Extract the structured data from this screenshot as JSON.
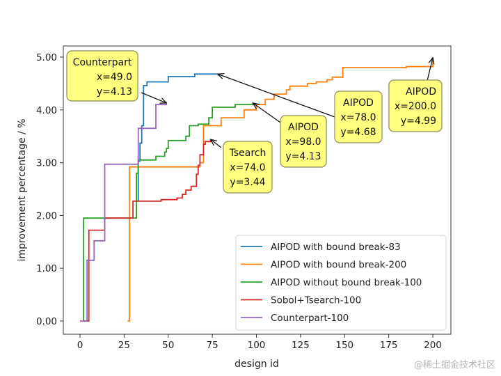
{
  "chart_data": {
    "type": "line",
    "step": true,
    "title": "",
    "xlabel": "design id",
    "ylabel": "improvement percentage / %",
    "xlim": [
      -8,
      210
    ],
    "ylim": [
      -0.25,
      5.2
    ],
    "xticks": [
      0,
      25,
      50,
      75,
      100,
      125,
      150,
      175,
      200
    ],
    "yticks": [
      0.0,
      1.0,
      2.0,
      3.0,
      4.0,
      5.0
    ],
    "ytick_labels": [
      "0.00",
      "1.00",
      "2.00",
      "3.00",
      "4.00",
      "5.00"
    ],
    "grid": false,
    "legend_position": "lower-right",
    "series": [
      {
        "name": "AIPOD with bound break-83",
        "color": "#1f77b4",
        "points": [
          [
            33,
            2.28
          ],
          [
            33,
            2.9
          ],
          [
            33,
            3.03
          ],
          [
            34,
            3.03
          ],
          [
            34,
            3.37
          ],
          [
            35,
            3.37
          ],
          [
            35,
            3.7
          ],
          [
            36,
            3.7
          ],
          [
            36,
            4.46
          ],
          [
            38,
            4.46
          ],
          [
            38,
            4.53
          ],
          [
            50,
            4.53
          ],
          [
            50,
            4.63
          ],
          [
            65,
            4.63
          ],
          [
            65,
            4.68
          ],
          [
            78,
            4.68
          ]
        ]
      },
      {
        "name": "AIPOD with bound break-200",
        "color": "#ff7f0e",
        "points": [
          [
            27,
            0.0
          ],
          [
            28,
            0.0
          ],
          [
            28,
            2.92
          ],
          [
            66,
            2.92
          ],
          [
            66,
            2.92
          ],
          [
            68,
            2.92
          ],
          [
            68,
            3.0
          ],
          [
            70,
            3.0
          ],
          [
            70,
            3.7
          ],
          [
            80,
            3.7
          ],
          [
            80,
            3.85
          ],
          [
            93,
            3.85
          ],
          [
            93,
            4.0
          ],
          [
            100,
            4.0
          ],
          [
            100,
            4.1
          ],
          [
            105,
            4.1
          ],
          [
            105,
            4.2
          ],
          [
            110,
            4.2
          ],
          [
            110,
            4.3
          ],
          [
            117,
            4.3
          ],
          [
            117,
            4.38
          ],
          [
            119,
            4.38
          ],
          [
            119,
            4.45
          ],
          [
            129,
            4.45
          ],
          [
            129,
            4.5
          ],
          [
            134,
            4.5
          ],
          [
            134,
            4.53
          ],
          [
            140,
            4.53
          ],
          [
            140,
            4.57
          ],
          [
            143,
            4.57
          ],
          [
            143,
            4.62
          ],
          [
            149,
            4.62
          ],
          [
            149,
            4.8
          ],
          [
            185,
            4.8
          ],
          [
            185,
            4.82
          ],
          [
            200,
            4.82
          ],
          [
            200,
            4.99
          ]
        ]
      },
      {
        "name": "AIPOD without bound break-100",
        "color": "#2ca02c",
        "points": [
          [
            2,
            0.0
          ],
          [
            2,
            1.95
          ],
          [
            32,
            1.95
          ],
          [
            32,
            2.8
          ],
          [
            33,
            2.8
          ],
          [
            33,
            3.05
          ],
          [
            43,
            3.05
          ],
          [
            43,
            3.12
          ],
          [
            48,
            3.12
          ],
          [
            48,
            3.2
          ],
          [
            49,
            3.2
          ],
          [
            49,
            3.27
          ],
          [
            50,
            3.27
          ],
          [
            50,
            3.42
          ],
          [
            60,
            3.42
          ],
          [
            60,
            3.5
          ],
          [
            62,
            3.5
          ],
          [
            62,
            3.7
          ],
          [
            67,
            3.7
          ],
          [
            67,
            3.73
          ],
          [
            73,
            3.73
          ],
          [
            73,
            3.85
          ],
          [
            75,
            3.85
          ],
          [
            75,
            4.05
          ],
          [
            88,
            4.05
          ],
          [
            88,
            4.1
          ],
          [
            98,
            4.1
          ],
          [
            98,
            4.13
          ]
        ]
      },
      {
        "name": "Sobol+Tsearch-100",
        "color": "#d62728",
        "points": [
          [
            2,
            0.0
          ],
          [
            5,
            0.0
          ],
          [
            5,
            1.72
          ],
          [
            14,
            1.72
          ],
          [
            14,
            1.95
          ],
          [
            30,
            1.95
          ],
          [
            30,
            2.27
          ],
          [
            46,
            2.27
          ],
          [
            46,
            2.3
          ],
          [
            55,
            2.3
          ],
          [
            55,
            2.33
          ],
          [
            58,
            2.33
          ],
          [
            58,
            2.4
          ],
          [
            60,
            2.4
          ],
          [
            60,
            2.48
          ],
          [
            63,
            2.48
          ],
          [
            63,
            2.55
          ],
          [
            66,
            2.55
          ],
          [
            66,
            2.78
          ],
          [
            67,
            2.78
          ],
          [
            67,
            2.95
          ],
          [
            68,
            2.95
          ],
          [
            68,
            3.15
          ],
          [
            70,
            3.15
          ],
          [
            70,
            3.35
          ],
          [
            71,
            3.35
          ],
          [
            71,
            3.4
          ],
          [
            74,
            3.4
          ],
          [
            74,
            3.44
          ]
        ]
      },
      {
        "name": "Counterpart-100",
        "color": "#9467bd",
        "points": [
          [
            0,
            0.0
          ],
          [
            4,
            0.0
          ],
          [
            4,
            1.15
          ],
          [
            8,
            1.15
          ],
          [
            8,
            1.52
          ],
          [
            14,
            1.52
          ],
          [
            14,
            2.97
          ],
          [
            33,
            2.97
          ],
          [
            33,
            3.65
          ],
          [
            43,
            3.65
          ],
          [
            43,
            4.1
          ],
          [
            49,
            4.1
          ],
          [
            49,
            4.13
          ]
        ]
      }
    ],
    "annotations": [
      {
        "lines": [
          "Counterpart",
          "x=49.0",
          "y=4.13"
        ],
        "target": [
          49,
          4.13
        ]
      },
      {
        "lines": [
          "AIPOD",
          "x=78.0",
          "y=4.68"
        ],
        "target": [
          78,
          4.68
        ]
      },
      {
        "lines": [
          "AIPOD",
          "x=98.0",
          "y=4.13"
        ],
        "target": [
          98,
          4.13
        ]
      },
      {
        "lines": [
          "Tsearch",
          "x=74.0",
          "y=3.44"
        ],
        "target": [
          74,
          3.44
        ]
      },
      {
        "lines": [
          "AIPOD",
          "x=200.0",
          "y=4.99"
        ],
        "target": [
          200,
          4.99
        ]
      }
    ],
    "annotation_style": {
      "box_fill": "#ffff80",
      "box_edge": "#8a8a5a"
    }
  },
  "watermark": "@稀土掘金技术社区"
}
